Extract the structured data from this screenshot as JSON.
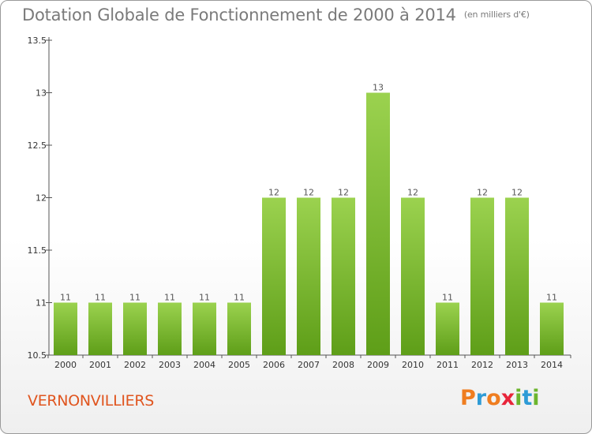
{
  "header": {
    "title": "Dotation Globale de Fonctionnement de 2000 à 2014",
    "unit": "(en milliers d'€)"
  },
  "footer": {
    "place": "VERNONVILLIERS",
    "logo_letters": [
      "P",
      "r",
      "o",
      "x",
      "i",
      "t",
      "i"
    ]
  },
  "colors": {
    "bar_top": "#9bd24f",
    "bar_bottom": "#5e9e18",
    "place": "#e0551f",
    "logo": [
      "#ef7d20",
      "#2e9bd6",
      "#ef7d20",
      "#e8253a",
      "#6cb52d",
      "#2e9bd6",
      "#6cb52d"
    ]
  },
  "chart_data": {
    "type": "bar",
    "title": "Dotation Globale de Fonctionnement de 2000 à 2014",
    "xlabel": "",
    "ylabel": "",
    "categories": [
      "2000",
      "2001",
      "2002",
      "2003",
      "2004",
      "2005",
      "2006",
      "2007",
      "2008",
      "2009",
      "2010",
      "2011",
      "2012",
      "2013",
      "2014"
    ],
    "values": [
      11,
      11,
      11,
      11,
      11,
      11,
      12,
      12,
      12,
      13,
      12,
      11,
      12,
      12,
      11
    ],
    "value_labels": [
      "11",
      "11",
      "11",
      "11",
      "11",
      "11",
      "12",
      "12",
      "12",
      "13",
      "12",
      "11",
      "12",
      "12",
      "11"
    ],
    "ylim": [
      10.5,
      13.5
    ],
    "yticks": [
      10.5,
      11,
      11.5,
      12,
      12.5,
      13,
      13.5
    ],
    "ytick_labels": [
      "10.5",
      "11",
      "11.5",
      "12",
      "12.5",
      "13",
      "13.5"
    ],
    "grid": false
  }
}
